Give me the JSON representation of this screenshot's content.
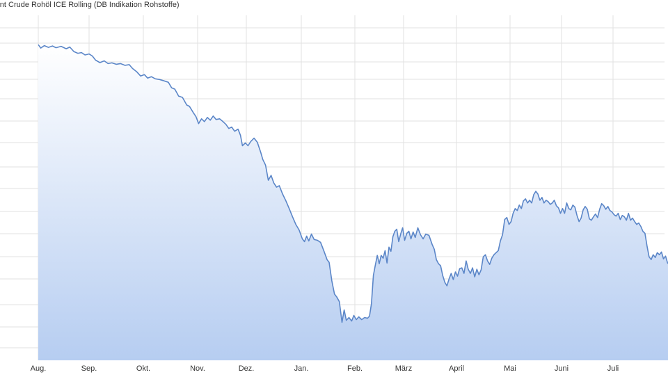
{
  "chart_data": {
    "type": "area",
    "title": "rent Crude Rohöl ICE Rolling (DB Indikation Rohstoffe)",
    "x_tick_labels": [
      "Aug.",
      "Sep.",
      "Okt.",
      "Nov.",
      "Dez.",
      "Jan.",
      "Feb.",
      "März",
      "April",
      "Mai",
      "Juni",
      "Juli"
    ],
    "x_range": [
      0,
      12.33
    ],
    "y_range": [
      0,
      100
    ],
    "grid": true,
    "legend": "none",
    "series": [
      {
        "color": "#5b86c8",
        "fill_top": "#ffffff",
        "fill_bottom": "#b6cdf1",
        "points": [
          [
            0,
            91.5
          ],
          [
            0.05,
            90.5
          ],
          [
            0.12,
            91.2
          ],
          [
            0.2,
            90.7
          ],
          [
            0.28,
            91.1
          ],
          [
            0.35,
            90.6
          ],
          [
            0.45,
            91
          ],
          [
            0.55,
            90.3
          ],
          [
            0.62,
            90.8
          ],
          [
            0.7,
            89.5
          ],
          [
            0.78,
            89
          ],
          [
            0.85,
            89.2
          ],
          [
            0.92,
            88.5
          ],
          [
            1.0,
            88.8
          ],
          [
            1.06,
            88.2
          ],
          [
            1.12,
            87
          ],
          [
            1.2,
            86.3
          ],
          [
            1.28,
            86.8
          ],
          [
            1.35,
            86
          ],
          [
            1.42,
            86.2
          ],
          [
            1.5,
            85.8
          ],
          [
            1.58,
            86
          ],
          [
            1.66,
            85.5
          ],
          [
            1.74,
            85.7
          ],
          [
            1.8,
            84.6
          ],
          [
            1.88,
            83.6
          ],
          [
            1.95,
            82.4
          ],
          [
            2.02,
            82.8
          ],
          [
            2.08,
            81.8
          ],
          [
            2.15,
            82.2
          ],
          [
            2.22,
            81.6
          ],
          [
            2.3,
            81.4
          ],
          [
            2.38,
            81
          ],
          [
            2.46,
            80.6
          ],
          [
            2.52,
            79
          ],
          [
            2.58,
            78.6
          ],
          [
            2.65,
            76.6
          ],
          [
            2.72,
            76.2
          ],
          [
            2.8,
            74
          ],
          [
            2.85,
            73.6
          ],
          [
            2.92,
            71.8
          ],
          [
            2.97,
            70.6
          ],
          [
            3.02,
            68.6
          ],
          [
            3.08,
            70
          ],
          [
            3.14,
            69.2
          ],
          [
            3.2,
            70.4
          ],
          [
            3.26,
            69.6
          ],
          [
            3.32,
            70.8
          ],
          [
            3.38,
            69.8
          ],
          [
            3.45,
            70
          ],
          [
            3.52,
            69.2
          ],
          [
            3.58,
            68.4
          ],
          [
            3.64,
            67.2
          ],
          [
            3.7,
            67.6
          ],
          [
            3.76,
            66.4
          ],
          [
            3.83,
            67
          ],
          [
            3.88,
            65.2
          ],
          [
            3.92,
            62.2
          ],
          [
            3.98,
            63
          ],
          [
            4.03,
            62.2
          ],
          [
            4.08,
            63.4
          ],
          [
            4.14,
            64.4
          ],
          [
            4.2,
            63.2
          ],
          [
            4.26,
            60.4
          ],
          [
            4.3,
            58.2
          ],
          [
            4.35,
            56.6
          ],
          [
            4.4,
            52.2
          ],
          [
            4.45,
            53.6
          ],
          [
            4.5,
            51.4
          ],
          [
            4.55,
            50.2
          ],
          [
            4.6,
            50.6
          ],
          [
            4.66,
            48.2
          ],
          [
            4.72,
            46.2
          ],
          [
            4.78,
            44
          ],
          [
            4.84,
            41.6
          ],
          [
            4.9,
            39.4
          ],
          [
            4.96,
            37.8
          ],
          [
            5.02,
            35.2
          ],
          [
            5.06,
            34.4
          ],
          [
            5.1,
            36
          ],
          [
            5.14,
            34.6
          ],
          [
            5.19,
            36.6
          ],
          [
            5.24,
            35
          ],
          [
            5.3,
            34.8
          ],
          [
            5.36,
            34.2
          ],
          [
            5.42,
            31.8
          ],
          [
            5.48,
            29.2
          ],
          [
            5.52,
            28.4
          ],
          [
            5.57,
            23
          ],
          [
            5.62,
            19.2
          ],
          [
            5.66,
            18.4
          ],
          [
            5.71,
            17
          ],
          [
            5.76,
            11
          ],
          [
            5.8,
            14.6
          ],
          [
            5.84,
            11.6
          ],
          [
            5.89,
            12.4
          ],
          [
            5.94,
            11.4
          ],
          [
            5.98,
            13
          ],
          [
            6.03,
            11.8
          ],
          [
            6.08,
            12.6
          ],
          [
            6.14,
            11.8
          ],
          [
            6.2,
            12.4
          ],
          [
            6.26,
            12.2
          ],
          [
            6.3,
            12.8
          ],
          [
            6.34,
            16.4
          ],
          [
            6.38,
            24.6
          ],
          [
            6.42,
            27.6
          ],
          [
            6.46,
            30.4
          ],
          [
            6.5,
            28
          ],
          [
            6.54,
            30.4
          ],
          [
            6.58,
            29.6
          ],
          [
            6.62,
            31.8
          ],
          [
            6.66,
            28.2
          ],
          [
            6.7,
            32.8
          ],
          [
            6.74,
            31.6
          ],
          [
            6.78,
            35.8
          ],
          [
            6.82,
            37.4
          ],
          [
            6.86,
            38
          ],
          [
            6.9,
            34.4
          ],
          [
            6.94,
            36.6
          ],
          [
            6.98,
            38.4
          ],
          [
            7.02,
            34.8
          ],
          [
            7.06,
            36.8
          ],
          [
            7.1,
            37.4
          ],
          [
            7.14,
            35.2
          ],
          [
            7.18,
            37.2
          ],
          [
            7.22,
            35.6
          ],
          [
            7.27,
            38.4
          ],
          [
            7.32,
            36.4
          ],
          [
            7.37,
            35.2
          ],
          [
            7.42,
            36.6
          ],
          [
            7.48,
            36.2
          ],
          [
            7.54,
            33.6
          ],
          [
            7.58,
            32.2
          ],
          [
            7.62,
            29.2
          ],
          [
            7.66,
            28
          ],
          [
            7.7,
            27.4
          ],
          [
            7.74,
            24.6
          ],
          [
            7.78,
            22.6
          ],
          [
            7.82,
            21.6
          ],
          [
            7.86,
            23.6
          ],
          [
            7.9,
            25.2
          ],
          [
            7.94,
            23.4
          ],
          [
            7.98,
            25.6
          ],
          [
            8.02,
            24.4
          ],
          [
            8.06,
            26.6
          ],
          [
            8.1,
            26.8
          ],
          [
            8.14,
            25.2
          ],
          [
            8.18,
            28.8
          ],
          [
            8.22,
            26.4
          ],
          [
            8.26,
            25.2
          ],
          [
            8.3,
            26.8
          ],
          [
            8.34,
            24.2
          ],
          [
            8.38,
            26.4
          ],
          [
            8.42,
            24.8
          ],
          [
            8.46,
            26.2
          ],
          [
            8.5,
            30
          ],
          [
            8.54,
            30.6
          ],
          [
            8.58,
            28.8
          ],
          [
            8.62,
            27.8
          ],
          [
            8.66,
            29.6
          ],
          [
            8.7,
            30.6
          ],
          [
            8.74,
            31.2
          ],
          [
            8.78,
            31.8
          ],
          [
            8.82,
            34.6
          ],
          [
            8.86,
            36.4
          ],
          [
            8.9,
            40.8
          ],
          [
            8.94,
            41.4
          ],
          [
            8.98,
            39.4
          ],
          [
            9.02,
            40.2
          ],
          [
            9.06,
            42.6
          ],
          [
            9.1,
            44
          ],
          [
            9.14,
            43.4
          ],
          [
            9.18,
            45
          ],
          [
            9.22,
            44
          ],
          [
            9.26,
            46.2
          ],
          [
            9.3,
            46.8
          ],
          [
            9.34,
            45.6
          ],
          [
            9.38,
            46.4
          ],
          [
            9.42,
            45.6
          ],
          [
            9.46,
            48
          ],
          [
            9.5,
            49
          ],
          [
            9.54,
            48.2
          ],
          [
            9.58,
            46.4
          ],
          [
            9.62,
            47.2
          ],
          [
            9.66,
            45.6
          ],
          [
            9.7,
            46.4
          ],
          [
            9.74,
            46
          ],
          [
            9.78,
            45.2
          ],
          [
            9.82,
            45.6
          ],
          [
            9.86,
            46.4
          ],
          [
            9.9,
            44.8
          ],
          [
            9.94,
            44.2
          ],
          [
            9.98,
            42.6
          ],
          [
            10.02,
            44
          ],
          [
            10.06,
            42.6
          ],
          [
            10.1,
            45.6
          ],
          [
            10.14,
            44
          ],
          [
            10.18,
            43.6
          ],
          [
            10.22,
            45
          ],
          [
            10.26,
            44.4
          ],
          [
            10.3,
            42
          ],
          [
            10.34,
            40.2
          ],
          [
            10.38,
            41.2
          ],
          [
            10.42,
            43.6
          ],
          [
            10.46,
            44.6
          ],
          [
            10.5,
            43.8
          ],
          [
            10.54,
            41
          ],
          [
            10.58,
            40.6
          ],
          [
            10.62,
            41.6
          ],
          [
            10.66,
            42.4
          ],
          [
            10.7,
            41.4
          ],
          [
            10.74,
            43.8
          ],
          [
            10.78,
            45.4
          ],
          [
            10.82,
            44.8
          ],
          [
            10.86,
            43.8
          ],
          [
            10.9,
            44.6
          ],
          [
            10.94,
            43.4
          ],
          [
            10.98,
            43
          ],
          [
            11.02,
            42.2
          ],
          [
            11.06,
            41.8
          ],
          [
            11.1,
            42.6
          ],
          [
            11.14,
            40.8
          ],
          [
            11.18,
            42
          ],
          [
            11.22,
            41.6
          ],
          [
            11.26,
            40.6
          ],
          [
            11.3,
            42.6
          ],
          [
            11.34,
            40.6
          ],
          [
            11.38,
            41.2
          ],
          [
            11.42,
            40.2
          ],
          [
            11.46,
            39.4
          ],
          [
            11.5,
            39.8
          ],
          [
            11.54,
            38.8
          ],
          [
            11.58,
            37.4
          ],
          [
            11.62,
            36.8
          ],
          [
            11.66,
            33.2
          ],
          [
            11.7,
            30
          ],
          [
            11.74,
            29.2
          ],
          [
            11.78,
            30.6
          ],
          [
            11.82,
            29.8
          ],
          [
            11.86,
            31.2
          ],
          [
            11.9,
            30.6
          ],
          [
            11.94,
            31.4
          ],
          [
            11.98,
            29.4
          ],
          [
            12.02,
            30.2
          ],
          [
            12.06,
            28.2
          ],
          [
            12.1,
            27.8
          ],
          [
            12.14,
            26.8
          ],
          [
            12.18,
            27.4
          ],
          [
            12.22,
            25.6
          ],
          [
            12.26,
            22.4
          ],
          [
            12.3,
            20.6
          ],
          [
            12.33,
            20.8
          ]
        ]
      }
    ]
  }
}
